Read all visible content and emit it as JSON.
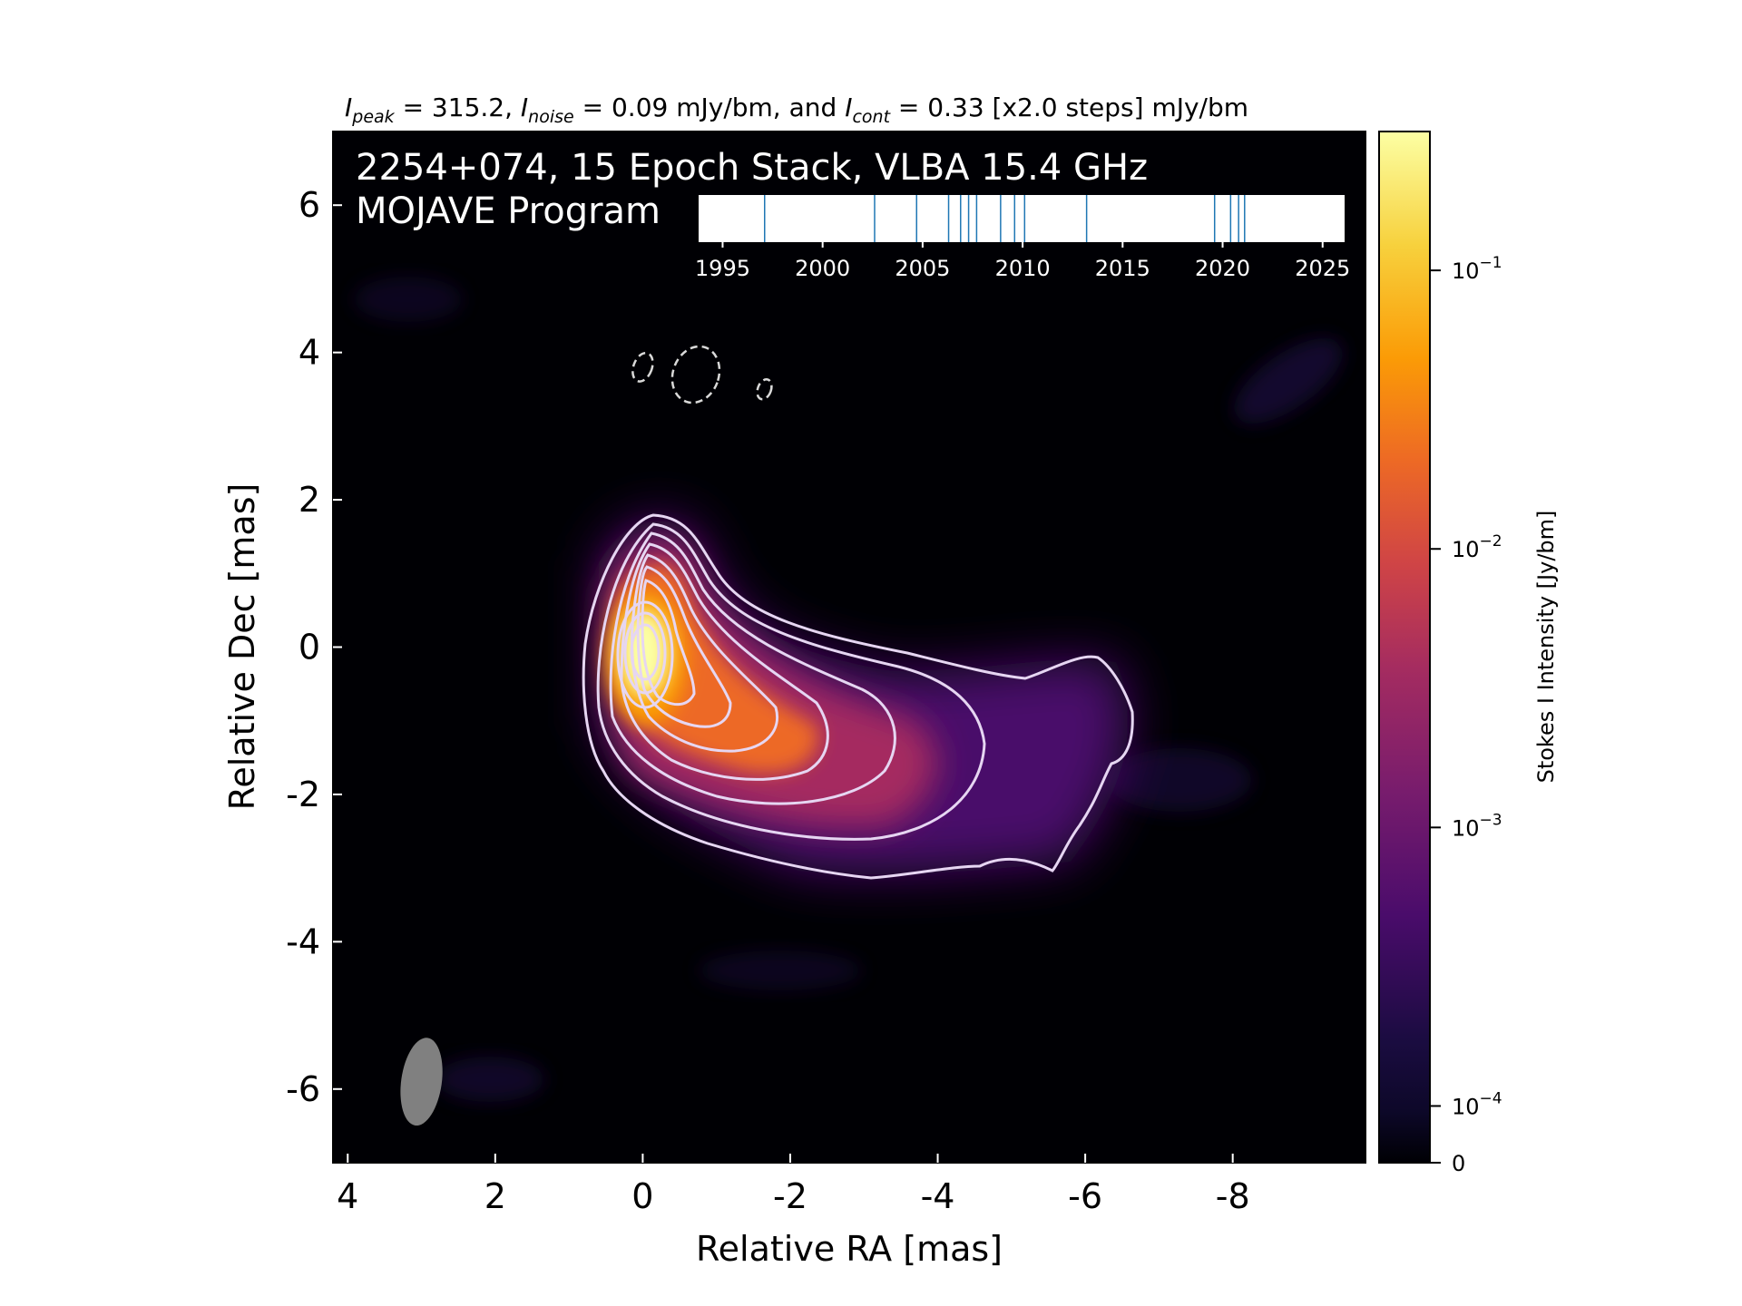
{
  "header": {
    "peak_sym": "I",
    "peak_sub": "peak",
    "peak_text": " = 315.2, ",
    "noise_sym": "I",
    "noise_sub": "noise",
    "noise_text": " = 0.09 mJy/bm, and ",
    "cont_sym": "I",
    "cont_sub": "cont",
    "cont_text": " = 0.33 [x2.0 steps] mJy/bm"
  },
  "overlay": {
    "line1": "2254+074, 15 Epoch Stack, VLBA 15.4 GHz",
    "line2": "MOJAVE Program"
  },
  "colors": {
    "colormap": [
      "#000004",
      "#1b0c41",
      "#4a0c6b",
      "#781c6d",
      "#a52c60",
      "#cf4446",
      "#ed6925",
      "#fb9b06",
      "#f7d13d",
      "#fcffa4"
    ],
    "contour": "#e6d6f2",
    "beam": "#808080",
    "timeline_tick": "#1f77b4"
  },
  "chart_data": [
    {
      "type": "heatmap",
      "title": "",
      "xlabel": "Relative RA [mas]",
      "ylabel": "Relative Dec [mas]",
      "xlim": [
        4.2,
        -9.8
      ],
      "ylim": [
        -7,
        7
      ],
      "xticks": [
        4,
        2,
        0,
        -2,
        -4,
        -6,
        -8
      ],
      "xtick_labels": [
        "4",
        "2",
        "0",
        "-2",
        "-4",
        "-6",
        "-8"
      ],
      "yticks": [
        6,
        4,
        2,
        0,
        -2,
        -4,
        -6
      ],
      "ytick_labels": [
        "6",
        "4",
        "2",
        "0",
        "-2",
        "-4",
        "-6"
      ],
      "peak_position": [
        0,
        0
      ],
      "jet_direction": "south-west",
      "beam": {
        "ra": 3.0,
        "dec": -5.9,
        "major_mas": 1.2,
        "minor_mas": 0.55,
        "pa_deg": 8
      },
      "contour_levels_mJy": [
        0.33,
        0.66,
        1.32,
        2.64,
        5.28,
        10.56,
        21.12,
        42.24,
        84.48,
        168.96
      ],
      "negative_contours": [
        {
          "ra": 0.0,
          "dec": 3.8,
          "w": 0.25,
          "h": 0.4
        },
        {
          "ra": -0.72,
          "dec": 3.7,
          "w": 0.62,
          "h": 0.78
        },
        {
          "ra": -1.65,
          "dec": 3.5,
          "w": 0.18,
          "h": 0.28
        }
      ]
    },
    {
      "type": "colorbar",
      "label": "Stokes I Intensity [Jy/bm]",
      "scale": "log",
      "range": [
        0,
        0.3152
      ],
      "ticks": [
        0.1,
        0.01,
        0.001,
        0.0001,
        0
      ],
      "tick_labels": [
        {
          "base": "10",
          "exp": "−1"
        },
        {
          "base": "10",
          "exp": "−2"
        },
        {
          "base": "10",
          "exp": "−3"
        },
        {
          "base": "10",
          "exp": "−4"
        },
        {
          "base": "0",
          "exp": ""
        }
      ]
    },
    {
      "type": "timeline",
      "xlim": [
        1993.8,
        2026.1
      ],
      "xticks": [
        1995,
        2000,
        2005,
        2010,
        2015,
        2020,
        2025
      ],
      "xtick_labels": [
        "1995",
        "2000",
        "2005",
        "2010",
        "2015",
        "2020",
        "2025"
      ],
      "epochs": [
        1997.1,
        2002.6,
        2004.7,
        2006.3,
        2006.9,
        2007.3,
        2007.7,
        2008.9,
        2009.6,
        2010.1,
        2013.2,
        2019.6,
        2020.4,
        2020.8,
        2021.1
      ]
    }
  ]
}
